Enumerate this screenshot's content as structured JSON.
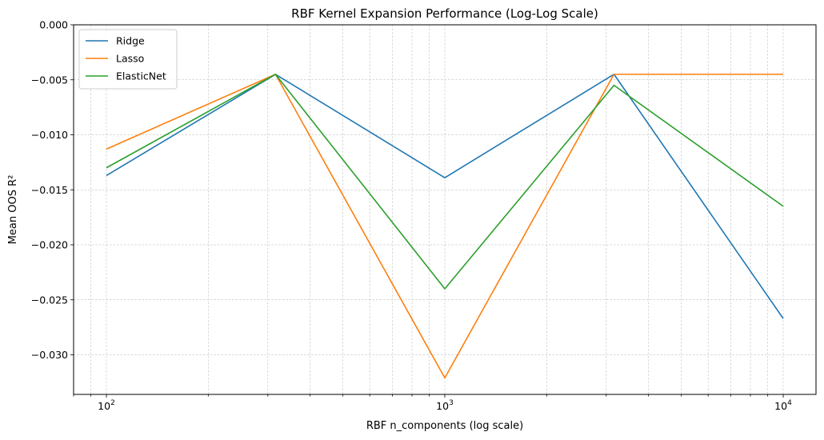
{
  "chart_data": {
    "type": "line",
    "title": "RBF Kernel Expansion Performance (Log-Log Scale)",
    "xlabel": "RBF n_components (log scale)",
    "ylabel": "Mean OOS R²",
    "xscale": "log",
    "xlim": [
      80,
      12500
    ],
    "ylim": [
      -0.0336,
      0.0
    ],
    "x": [
      100,
      316,
      1000,
      3162,
      10000
    ],
    "x_ticks": [
      {
        "value": 100,
        "base": "10",
        "exp": "2"
      },
      {
        "value": 1000,
        "base": "10",
        "exp": "3"
      },
      {
        "value": 10000,
        "base": "10",
        "exp": "4"
      }
    ],
    "y_ticks": [
      {
        "value": 0.0,
        "label": "0.000"
      },
      {
        "value": -0.005,
        "label": "−0.005"
      },
      {
        "value": -0.01,
        "label": "−0.010"
      },
      {
        "value": -0.015,
        "label": "−0.015"
      },
      {
        "value": -0.02,
        "label": "−0.020"
      },
      {
        "value": -0.025,
        "label": "−0.025"
      },
      {
        "value": -0.03,
        "label": "−0.030"
      }
    ],
    "grid": true,
    "legend_position": "top-left",
    "series": [
      {
        "name": "Ridge",
        "color": "#1f77b4",
        "values": [
          -0.0137,
          -0.0045,
          -0.0139,
          -0.0045,
          -0.0267
        ]
      },
      {
        "name": "Lasso",
        "color": "#ff7f0e",
        "values": [
          -0.0113,
          -0.0045,
          -0.0321,
          -0.0045,
          -0.0045
        ]
      },
      {
        "name": "ElasticNet",
        "color": "#2ca02c",
        "values": [
          -0.013,
          -0.0045,
          -0.024,
          -0.0055,
          -0.0165
        ]
      }
    ]
  }
}
